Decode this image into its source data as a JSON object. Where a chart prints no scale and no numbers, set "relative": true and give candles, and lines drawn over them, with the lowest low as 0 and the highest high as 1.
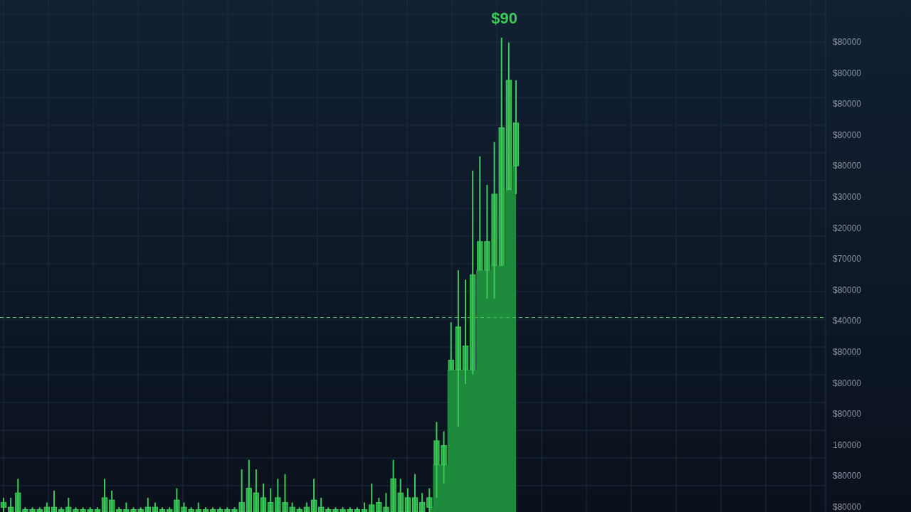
{
  "chart_data": {
    "type": "candlestick",
    "title": "$90",
    "relative": true,
    "grid": true,
    "color": "#3ec95a",
    "categories": [
      null,
      null,
      null,
      null,
      null,
      null,
      null,
      null,
      null,
      null,
      null,
      null,
      null,
      null,
      null,
      null,
      null,
      null,
      null,
      null,
      null,
      null,
      null,
      null,
      null,
      null,
      null,
      null,
      null,
      null,
      null,
      null,
      null,
      null,
      null,
      null,
      null,
      null,
      null,
      null,
      null,
      null,
      null,
      null,
      null,
      null,
      null,
      null,
      null,
      null,
      null,
      null,
      null,
      null,
      null,
      null,
      null,
      null,
      null,
      null,
      null,
      null,
      null,
      null,
      null,
      null,
      null,
      null,
      null,
      null,
      null,
      null
    ],
    "ohlc": [
      [
        0.01,
        0.03,
        0,
        0.02
      ],
      [
        0,
        0.03,
        0,
        0.01
      ],
      [
        0,
        0.07,
        0,
        0.04
      ],
      [
        0,
        0.01,
        0,
        0.005
      ],
      [
        0,
        0.01,
        0,
        0.005
      ],
      [
        0,
        0.01,
        0,
        0.005
      ],
      [
        0,
        0.02,
        0,
        0.01
      ],
      [
        0,
        0.045,
        0,
        0.01
      ],
      [
        0,
        0.01,
        0,
        0.005
      ],
      [
        0,
        0.03,
        0,
        0.01
      ],
      [
        0,
        0.01,
        0,
        0.005
      ],
      [
        0,
        0.01,
        0,
        0.005
      ],
      [
        0,
        0.01,
        0,
        0.005
      ],
      [
        0,
        0.01,
        0,
        0.005
      ],
      [
        0,
        0.07,
        0,
        0.03
      ],
      [
        0,
        0.045,
        0,
        0.025
      ],
      [
        0,
        0.01,
        0,
        0.005
      ],
      [
        0,
        0.02,
        0,
        0.005
      ],
      [
        0,
        0.01,
        0,
        0.005
      ],
      [
        0,
        0.01,
        0,
        0.005
      ],
      [
        0,
        0.03,
        0,
        0.01
      ],
      [
        0,
        0.02,
        0,
        0.01
      ],
      [
        0,
        0.01,
        0,
        0.005
      ],
      [
        0,
        0.01,
        0,
        0.005
      ],
      [
        0,
        0.05,
        0,
        0.025
      ],
      [
        0,
        0.02,
        0,
        0.01
      ],
      [
        0,
        0.01,
        0,
        0.005
      ],
      [
        0,
        0.02,
        0,
        0.005
      ],
      [
        0,
        0.01,
        0,
        0.005
      ],
      [
        0,
        0.01,
        0,
        0.005
      ],
      [
        0,
        0.01,
        0,
        0.005
      ],
      [
        0,
        0.01,
        0,
        0.005
      ],
      [
        0,
        0.01,
        0,
        0.005
      ],
      [
        0,
        0.09,
        0,
        0.02
      ],
      [
        0,
        0.11,
        0,
        0.05
      ],
      [
        0,
        0.09,
        0,
        0.04
      ],
      [
        0,
        0.06,
        0,
        0.03
      ],
      [
        0,
        0.05,
        0,
        0.02
      ],
      [
        0,
        0.07,
        0,
        0.03
      ],
      [
        0,
        0.08,
        0,
        0.02
      ],
      [
        0,
        0.02,
        0,
        0.01
      ],
      [
        0,
        0.01,
        0,
        0.005
      ],
      [
        0,
        0.02,
        0,
        0.01
      ],
      [
        0,
        0.07,
        0,
        0.025
      ],
      [
        0,
        0.03,
        0,
        0.01
      ],
      [
        0,
        0.01,
        0,
        0.005
      ],
      [
        0,
        0.01,
        0,
        0.005
      ],
      [
        0,
        0.01,
        0,
        0.005
      ],
      [
        0,
        0.01,
        0,
        0.005
      ],
      [
        0,
        0.01,
        0,
        0.005
      ],
      [
        0,
        0.02,
        0,
        0.005
      ],
      [
        0,
        0.06,
        0,
        0.015
      ],
      [
        0,
        0.03,
        0,
        0.02
      ],
      [
        0,
        0.04,
        0,
        0.01
      ],
      [
        0,
        0.11,
        0,
        0.07
      ],
      [
        0,
        0.07,
        0,
        0.04
      ],
      [
        0,
        0.05,
        0,
        0.03
      ],
      [
        0,
        0.08,
        0,
        0.03
      ],
      [
        0,
        0.04,
        0,
        0.02
      ],
      [
        0.01,
        0.05,
        0,
        0.03
      ],
      [
        0.1,
        0.19,
        0.03,
        0.15
      ],
      [
        0.1,
        0.17,
        0.06,
        0.14
      ],
      [
        0.3,
        0.4,
        0.3,
        0.32
      ],
      [
        0.3,
        0.51,
        0.18,
        0.39
      ],
      [
        0.3,
        0.49,
        0.27,
        0.35
      ],
      [
        0.3,
        0.72,
        0.29,
        0.5
      ],
      [
        0.51,
        0.75,
        0.51,
        0.57
      ],
      [
        0.51,
        0.69,
        0.45,
        0.57
      ],
      [
        0.52,
        0.78,
        0.45,
        0.67
      ],
      [
        0.52,
        1,
        0.52,
        0.81
      ],
      [
        0.68,
        0.99,
        0.68,
        0.91
      ],
      [
        0.73,
        0.91,
        0.67,
        0.82
      ]
    ],
    "series": [
      {
        "type": "area",
        "color": "#1e8a3c",
        "values": [
          null,
          null,
          null,
          null,
          null,
          null,
          null,
          null,
          null,
          null,
          null,
          null,
          null,
          null,
          null,
          null,
          null,
          null,
          null,
          null,
          null,
          null,
          null,
          null,
          null,
          null,
          null,
          null,
          null,
          null,
          null,
          null,
          null,
          null,
          null,
          null,
          null,
          null,
          null,
          null,
          null,
          null,
          null,
          null,
          null,
          null,
          null,
          null,
          null,
          null,
          null,
          null,
          null,
          null,
          null,
          null,
          null,
          null,
          null,
          0.01,
          0.1,
          0.1,
          0.3,
          0.3,
          0.3,
          0.3,
          0.51,
          0.51,
          0.52,
          0.52,
          0.68,
          0.73
        ]
      }
    ],
    "ref_lines": [
      {
        "axis": "y",
        "value": 0.41,
        "color": "#3ec95a",
        "line_style": "dashed"
      }
    ],
    "annotations": [
      "$80000",
      "$80000",
      "$80000",
      "$80000",
      "$80000",
      "$30000",
      "$20000",
      "$70000",
      "$80000",
      "$40000",
      "$80000",
      "$80000",
      "$80000",
      "160000",
      "$80000",
      "$80000"
    ]
  }
}
